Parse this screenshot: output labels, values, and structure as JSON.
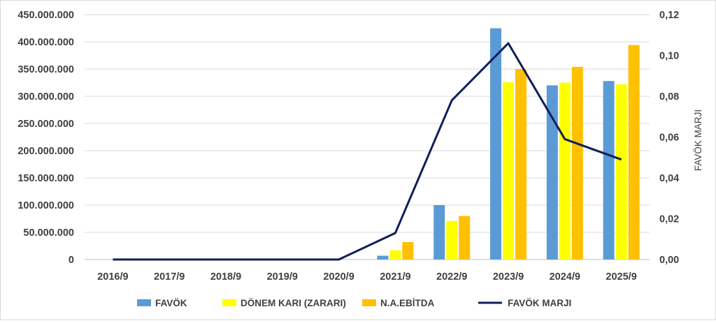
{
  "chart_data": {
    "type": "bar",
    "categories": [
      "2016/9",
      "2017/9",
      "2018/9",
      "2019/9",
      "2020/9",
      "2021/9",
      "2022/9",
      "2023/9",
      "2024/9",
      "2025/9"
    ],
    "series": [
      {
        "name": "FAVÖK",
        "type": "bar",
        "axis": "left",
        "color": "#5b9bd5",
        "values": [
          0,
          0,
          0,
          0,
          0,
          7000000,
          100000000,
          425000000,
          320000000,
          328000000
        ]
      },
      {
        "name": "DÖNEM KARI (ZARARI)",
        "type": "bar",
        "axis": "left",
        "color": "#ffff00",
        "values": [
          0,
          0,
          0,
          0,
          0,
          17000000,
          71000000,
          326000000,
          325000000,
          322000000
        ]
      },
      {
        "name": "N.A.EBİTDA",
        "type": "bar",
        "axis": "left",
        "color": "#ffc000",
        "values": [
          0,
          0,
          0,
          0,
          0,
          32000000,
          80000000,
          350000000,
          354000000,
          394000000
        ]
      },
      {
        "name": "FAVÖK MARJI",
        "type": "line",
        "axis": "right",
        "color": "#0d1e5a",
        "values": [
          0,
          0,
          0,
          0,
          0,
          0.013,
          0.078,
          0.106,
          0.059,
          0.049
        ]
      }
    ],
    "y_left": {
      "ylim": [
        0,
        450000000
      ],
      "ticks": [
        "0",
        "50.000.000",
        "100.000.000",
        "150.000.000",
        "200.000.000",
        "250.000.000",
        "300.000.000",
        "350.000.000",
        "400.000.000",
        "450.000.000"
      ]
    },
    "y_right": {
      "label": "FAVÖK MARJI",
      "ylim": [
        0,
        0.12
      ],
      "ticks": [
        "0,00",
        "0,02",
        "0,04",
        "0,06",
        "0,08",
        "0,10",
        "0,12"
      ]
    },
    "grid": true,
    "legend": "bottom"
  }
}
